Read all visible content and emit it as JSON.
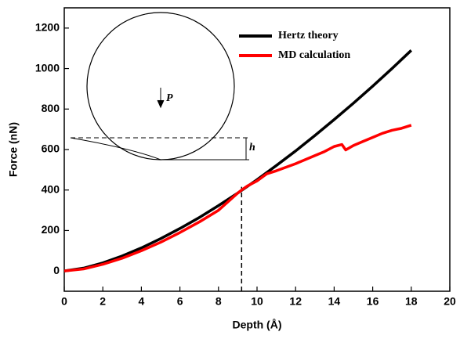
{
  "chart_data": {
    "type": "line",
    "xlabel": "Depth (Å)",
    "ylabel": "Force (nN)",
    "xlim": [
      0,
      20
    ],
    "xticks": [
      0,
      2,
      4,
      6,
      8,
      10,
      12,
      14,
      16,
      18,
      20
    ],
    "ylim": [
      -100,
      1300
    ],
    "yticks": [
      0,
      200,
      400,
      600,
      800,
      1000,
      1200
    ],
    "legend": "upper-right",
    "reference_line_x": 9.2,
    "inset": {
      "load_label": "P",
      "gap_label": "h"
    },
    "series": [
      {
        "name": "Hertz theory",
        "color": "#000000",
        "x": [
          0,
          1,
          2,
          3,
          4,
          5,
          6,
          7,
          8,
          9,
          10,
          11,
          12,
          13,
          14,
          15,
          16,
          17,
          18
        ],
        "values": [
          0,
          14,
          40,
          74,
          114,
          160,
          210,
          264,
          323,
          385,
          451,
          521,
          593,
          669,
          748,
          829,
          913,
          1000,
          1090
        ]
      },
      {
        "name": "MD calculation",
        "color": "#ff0000",
        "x": [
          0,
          1,
          2,
          3,
          4,
          5,
          6,
          7,
          8,
          9,
          9.2,
          9.5,
          10,
          10.5,
          11,
          12,
          13,
          13.5,
          14,
          14.4,
          14.6,
          15,
          15.5,
          16,
          16.5,
          17,
          17.5,
          18
        ],
        "values": [
          0,
          10,
          33,
          63,
          100,
          142,
          190,
          242,
          300,
          385,
          400,
          420,
          445,
          480,
          495,
          530,
          570,
          590,
          615,
          625,
          598,
          620,
          640,
          660,
          680,
          695,
          705,
          720
        ]
      }
    ]
  }
}
